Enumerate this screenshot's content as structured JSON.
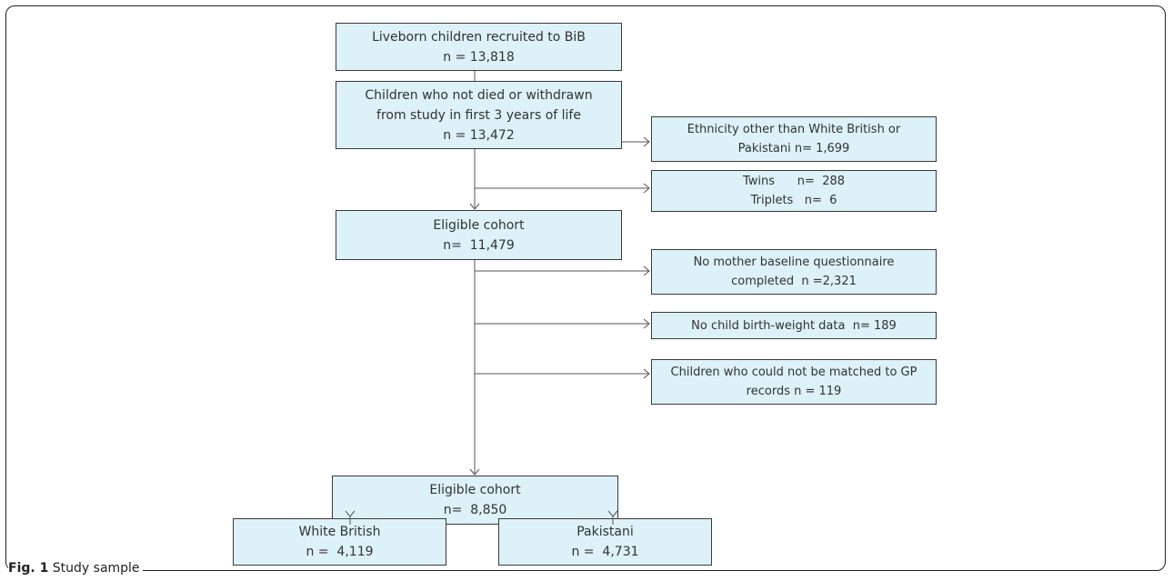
{
  "boxes": {
    "recruited": {
      "line1": "Liveborn children recruited to BiB",
      "line2": "n = 13,818"
    },
    "not_died": {
      "line1": "Children who not died or withdrawn",
      "line2": "from study in first 3 years of life",
      "line3": "n = 13,472"
    },
    "eligible1": {
      "line1": "Eligible cohort",
      "line2": "n=  11,479"
    },
    "eligible2": {
      "line1": "Eligible cohort",
      "line2": "n=  8,850"
    },
    "white_british": {
      "line1": "White British",
      "line2": "n =  4,119"
    },
    "pakistani": {
      "line1": "Pakistani",
      "line2": "n =  4,731"
    }
  },
  "exclusions": {
    "ethnicity": {
      "line1": "Ethnicity other than White British or",
      "line2": "Pakistani n= 1,699"
    },
    "twins": {
      "line1": "Twins      n=  288",
      "line2": "Triplets   n=  6"
    },
    "questionnaire": {
      "line1": "No mother baseline questionnaire",
      "line2": "completed  n =2,321"
    },
    "birthweight": {
      "line1": "No child birth-weight data  n= 189"
    },
    "gp": {
      "line1": "Children who could not be matched to GP",
      "line2": "records n = 119"
    }
  },
  "caption": {
    "label": "Fig. 1",
    "text": " Study sample"
  }
}
